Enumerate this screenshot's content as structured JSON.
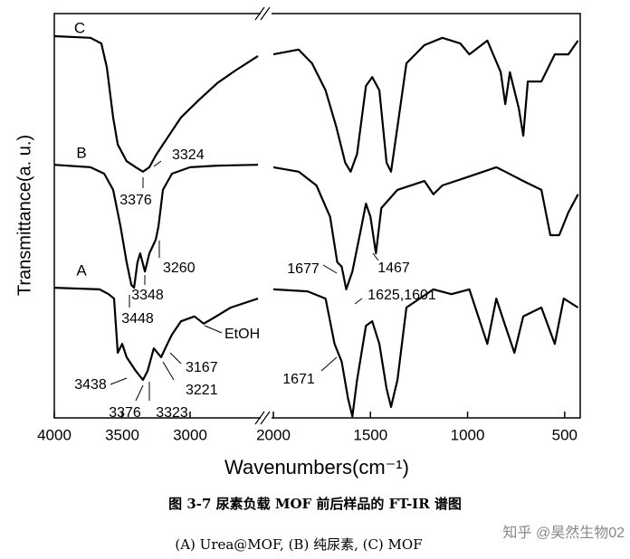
{
  "chart_data": [
    {
      "type": "line",
      "ylabel": "Transmittance(a. u.)",
      "xlabel": "Wavenumbers(cm⁻¹)",
      "xlim": [
        4000,
        2500
      ],
      "xticks": [
        4000,
        3500,
        3000
      ],
      "ylim": [
        0,
        100
      ],
      "series": [
        {
          "name": "C",
          "color": "#000000",
          "x": [
            4000,
            3733,
            3653,
            3613,
            3567,
            3533,
            3467,
            3400,
            3347,
            3300,
            3253,
            3200,
            3067,
            2933,
            2800,
            2667,
            2500
          ],
          "values": [
            94.4,
            94.0,
            92.6,
            86.6,
            74.3,
            67.6,
            63.5,
            62.0,
            60.9,
            62.0,
            64.9,
            67.6,
            74.3,
            78.7,
            82.8,
            85.9,
            89.5
          ]
        },
        {
          "name": "B",
          "color": "#000000",
          "x": [
            4000,
            3733,
            3633,
            3567,
            3513,
            3467,
            3433,
            3413,
            3387,
            3367,
            3333,
            3300,
            3253,
            3233,
            3200,
            3133,
            3000,
            2800,
            2500
          ],
          "values": [
            62.6,
            62.0,
            60.4,
            56.4,
            47.4,
            38.5,
            32.9,
            32.2,
            38.5,
            40.7,
            36.2,
            40.7,
            44.1,
            47.4,
            56.4,
            60.4,
            62.0,
            62.4,
            62.6
          ]
        },
        {
          "name": "A",
          "color": "#000000",
          "x": [
            4000,
            3667,
            3600,
            3560,
            3533,
            3500,
            3467,
            3400,
            3347,
            3313,
            3267,
            3213,
            3167,
            3133,
            3067,
            2967,
            2900,
            2833,
            2700,
            2500
          ],
          "values": [
            32.2,
            31.8,
            30.6,
            29.5,
            16.1,
            18.3,
            15.0,
            11.6,
            9.4,
            11.6,
            17.2,
            15.0,
            18.3,
            20.6,
            23.9,
            25.1,
            23.3,
            24.6,
            27.3,
            29.5
          ]
        }
      ],
      "annotations": [
        "3324",
        "3376",
        "3260",
        "3348",
        "3448",
        "EtOH",
        "3438",
        "3167",
        "3376",
        "3323",
        "3221"
      ]
    },
    {
      "type": "line",
      "xlim": [
        2000,
        420
      ],
      "xticks": [
        2000,
        1500,
        1000,
        500
      ],
      "ylim": [
        0,
        100
      ],
      "series": [
        {
          "color": "#000000",
          "x": [
            2000,
            1870,
            1801,
            1731,
            1676,
            1630,
            1602,
            1569,
            1523,
            1491,
            1454,
            1417,
            1394,
            1361,
            1315,
            1222,
            1130,
            1037,
            991,
            898,
            829,
            806,
            782,
            736,
            713,
            690,
            620,
            551,
            481,
            431
          ],
          "values": [
            89.9,
            91.1,
            87.7,
            81.0,
            72.0,
            63.1,
            60.9,
            65.3,
            82.1,
            84.3,
            81.0,
            63.1,
            60.9,
            72.0,
            87.7,
            92.2,
            94.0,
            92.6,
            89.9,
            93.3,
            85.5,
            77.6,
            85.5,
            76.5,
            69.8,
            83.2,
            83.2,
            89.9,
            89.9,
            93.3
          ]
        },
        {
          "color": "#000000",
          "x": [
            2000,
            1870,
            1778,
            1708,
            1671,
            1648,
            1625,
            1593,
            1546,
            1523,
            1500,
            1472,
            1444,
            1361,
            1222,
            1176,
            1130,
            991,
            852,
            806,
            713,
            620,
            574,
            528,
            481,
            431
          ],
          "values": [
            62.0,
            60.9,
            57.5,
            49.7,
            38.5,
            37.4,
            31.8,
            36.2,
            47.4,
            53.0,
            49.7,
            40.7,
            51.9,
            56.4,
            58.6,
            55.3,
            57.5,
            59.7,
            62.0,
            60.9,
            58.6,
            56.4,
            45.2,
            45.2,
            50.8,
            55.3
          ]
        },
        {
          "color": "#000000",
          "x": [
            2000,
            1824,
            1731,
            1685,
            1648,
            1616,
            1593,
            1569,
            1523,
            1491,
            1454,
            1417,
            1394,
            1361,
            1315,
            1176,
            1083,
            991,
            898,
            852,
            806,
            759,
            713,
            620,
            551,
            505,
            431
          ],
          "values": [
            31.8,
            31.3,
            29.5,
            18.3,
            13.9,
            4.9,
            0.4,
            9.4,
            22.8,
            23.9,
            18.3,
            7.2,
            2.7,
            9.4,
            27.3,
            31.8,
            30.6,
            31.8,
            18.3,
            29.5,
            22.8,
            16.1,
            25.1,
            27.3,
            18.3,
            29.5,
            27.3
          ]
        }
      ],
      "annotations": [
        "1677",
        "1467",
        "1625,1601",
        "1671"
      ]
    }
  ],
  "caption": {
    "line1": "图 3-7  尿素负载 MOF 前后样品的 FT-IR 谱图",
    "line2": "(A) Urea@MOF, (B)  纯尿素, (C) MOF"
  },
  "watermark": "知乎 @昊然生物02"
}
